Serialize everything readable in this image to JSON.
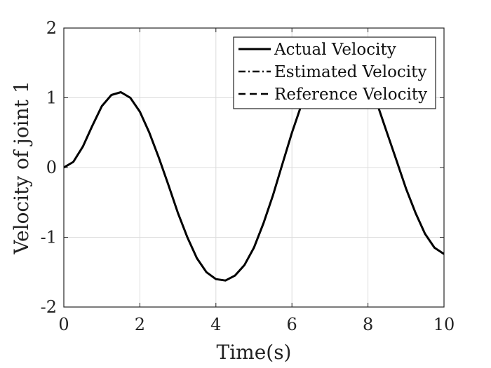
{
  "chart_data": {
    "type": "line",
    "title": "",
    "xlabel": "Time(s)",
    "ylabel": "Velocity of joint 1",
    "xlim": [
      0,
      10
    ],
    "ylim": [
      -2,
      2
    ],
    "xticks": [
      0,
      2,
      4,
      6,
      8,
      10
    ],
    "yticks": [
      -2,
      -1,
      0,
      1,
      2
    ],
    "xtick_labels": [
      "0",
      "2",
      "4",
      "6",
      "8",
      "10"
    ],
    "ytick_labels": [
      "-2",
      "-1",
      "0",
      "1",
      "2"
    ],
    "grid": true,
    "legend_position": "top-right",
    "x": [
      0,
      0.25,
      0.5,
      0.75,
      1.0,
      1.25,
      1.5,
      1.75,
      2.0,
      2.25,
      2.5,
      2.75,
      3.0,
      3.25,
      3.5,
      3.75,
      4.0,
      4.25,
      4.5,
      4.75,
      5.0,
      5.25,
      5.5,
      5.75,
      6.0,
      6.25,
      6.5,
      6.75,
      7.0,
      7.25,
      7.5,
      7.75,
      8.0,
      8.25,
      8.5,
      8.75,
      9.0,
      9.25,
      9.5,
      9.75,
      10.0
    ],
    "series": [
      {
        "name": "Actual Velocity",
        "style": "solid",
        "color": "#000000",
        "values": [
          0.0,
          0.08,
          0.3,
          0.6,
          0.88,
          1.04,
          1.08,
          1.0,
          0.8,
          0.5,
          0.14,
          -0.25,
          -0.65,
          -1.0,
          -1.3,
          -1.5,
          -1.6,
          -1.62,
          -1.55,
          -1.4,
          -1.15,
          -0.8,
          -0.4,
          0.05,
          0.5,
          0.9,
          1.25,
          1.5,
          1.65,
          1.7,
          1.65,
          1.5,
          1.25,
          0.9,
          0.5,
          0.1,
          -0.3,
          -0.65,
          -0.95,
          -1.15,
          -1.24
        ]
      },
      {
        "name": "Estimated Velocity",
        "style": "dashdot",
        "color": "#000000",
        "values": [
          0.0,
          0.08,
          0.3,
          0.6,
          0.88,
          1.04,
          1.08,
          1.0,
          0.8,
          0.5,
          0.14,
          -0.25,
          -0.65,
          -1.0,
          -1.3,
          -1.5,
          -1.6,
          -1.62,
          -1.55,
          -1.4,
          -1.15,
          -0.8,
          -0.4,
          0.05,
          0.5,
          0.9,
          1.25,
          1.5,
          1.65,
          1.7,
          1.65,
          1.5,
          1.25,
          0.9,
          0.5,
          0.1,
          -0.3,
          -0.65,
          -0.95,
          -1.15,
          -1.24
        ]
      },
      {
        "name": "Reference Velocity",
        "style": "dashed",
        "color": "#000000",
        "values": [
          0.0,
          0.08,
          0.3,
          0.6,
          0.88,
          1.04,
          1.08,
          1.0,
          0.8,
          0.5,
          0.14,
          -0.25,
          -0.65,
          -1.0,
          -1.3,
          -1.5,
          -1.6,
          -1.62,
          -1.55,
          -1.4,
          -1.15,
          -0.8,
          -0.4,
          0.05,
          0.5,
          0.9,
          1.25,
          1.5,
          1.65,
          1.7,
          1.65,
          1.5,
          1.25,
          0.9,
          0.5,
          0.1,
          -0.3,
          -0.65,
          -0.95,
          -1.15,
          -1.24
        ]
      }
    ]
  }
}
